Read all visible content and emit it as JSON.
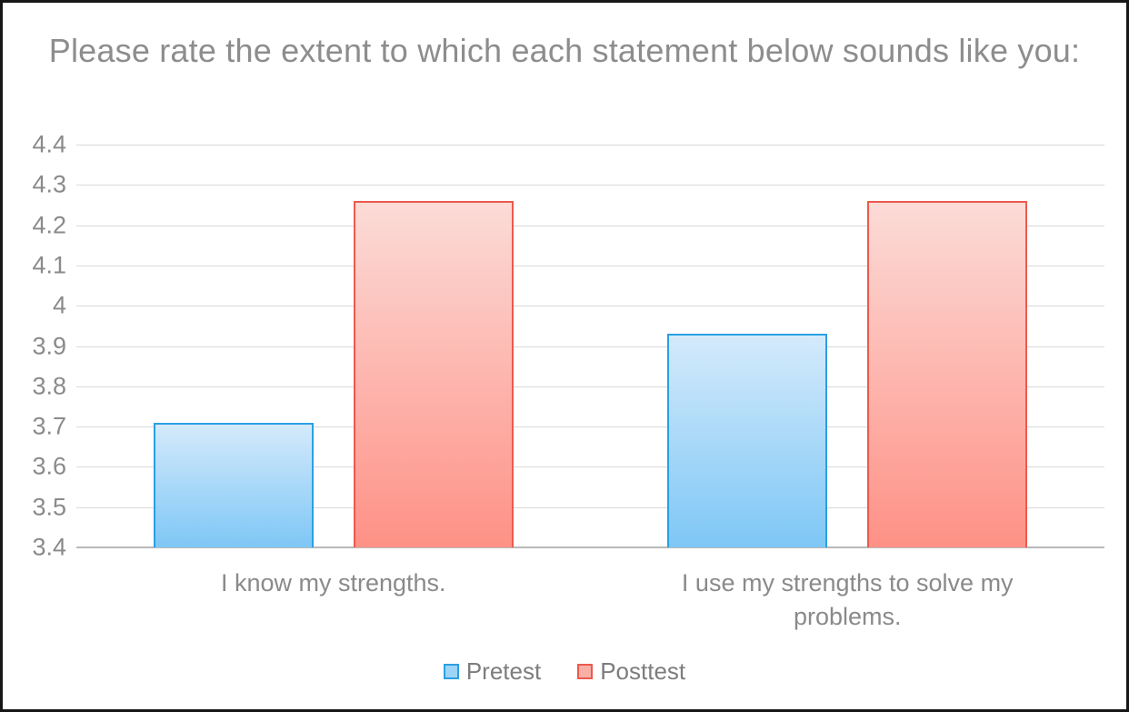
{
  "chart_data": {
    "type": "bar",
    "title": "Please rate the extent to which each statement below sounds like you:",
    "categories": [
      "I know my strengths.",
      "I use my strengths to solve my problems."
    ],
    "series": [
      {
        "name": "Pretest",
        "values": [
          3.71,
          3.93
        ],
        "fill_top": "#d4eafb",
        "fill_bottom": "#7ec7f6",
        "border": "#2b9fe2",
        "legend_fill": "#9ed4f6"
      },
      {
        "name": "Posttest",
        "values": [
          4.26,
          4.26
        ],
        "fill_top": "#fcdbd7",
        "fill_bottom": "#fe9186",
        "border": "#ec5a4e",
        "legend_fill": "#f8afa6"
      }
    ],
    "ylim": [
      3.4,
      4.4
    ],
    "ytick_step": 0.1,
    "yticks": [
      "4.4",
      "4.3",
      "4.2",
      "4.1",
      "4",
      "3.9",
      "3.8",
      "3.7",
      "3.6",
      "3.5",
      "3.4"
    ],
    "grid": true,
    "legend_position": "bottom",
    "colors": {
      "title_text": "#8d8d8d",
      "axis_text": "#8a8a8a",
      "gridline": "#d9d9d9",
      "axis_line": "#b9b9b9",
      "frame_border": "#161616",
      "background": "#ffffff"
    }
  }
}
